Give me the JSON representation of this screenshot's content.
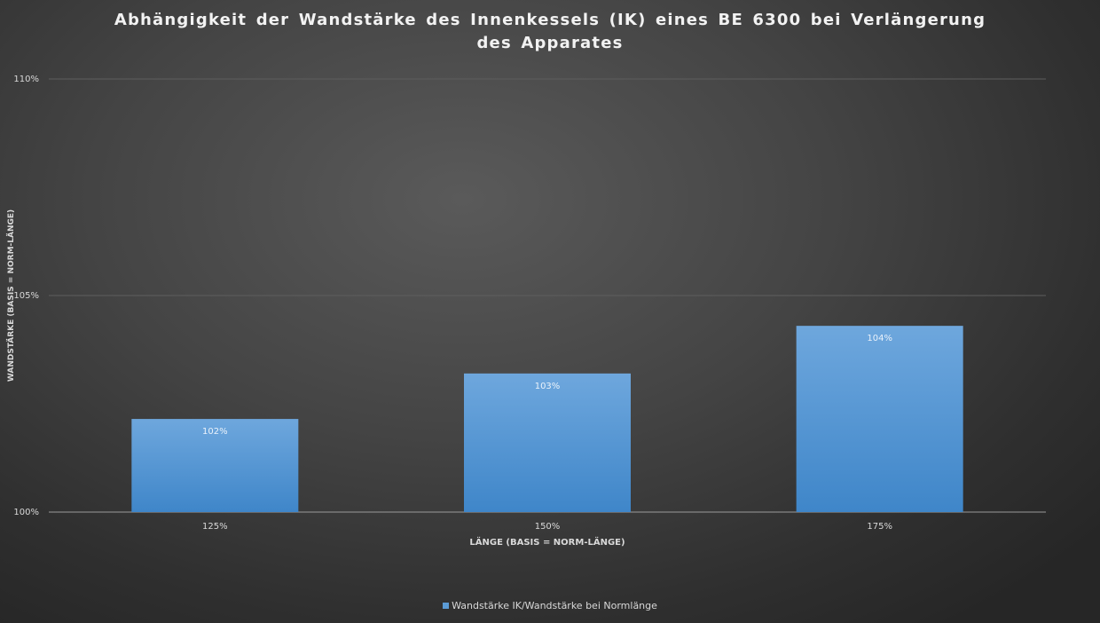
{
  "chart_data": {
    "type": "bar",
    "title": "Abhängigkeit der Wandstärke des Innenkessels (IK) eines BE 6300 bei Verlängerung des Apparates",
    "xlabel": "LÄNGE (BASIS = NORM-LÄNGE)",
    "ylabel": "WANDSTÄRKE (BASIS = NORM-LÄNGE)",
    "categories": [
      "125%",
      "150%",
      "175%"
    ],
    "series": [
      {
        "name": "Wandstärke IK/Wandstärke bei Normlänge",
        "values": [
          102.15,
          103.2,
          104.3
        ],
        "labels": [
          "102%",
          "103%",
          "104%"
        ]
      }
    ],
    "ylim": [
      100,
      110
    ],
    "yticks": [
      100,
      105,
      110
    ],
    "ytick_labels": [
      "100%",
      "105%",
      "110%"
    ],
    "grid": true,
    "legend_position": "bottom",
    "colors": {
      "bar_top": "#6ea7dd",
      "bar_bottom": "#3f86c9",
      "gridline": "#5e5e5e",
      "axis": "#9a9a9a",
      "text": "#d9d9d9"
    }
  }
}
